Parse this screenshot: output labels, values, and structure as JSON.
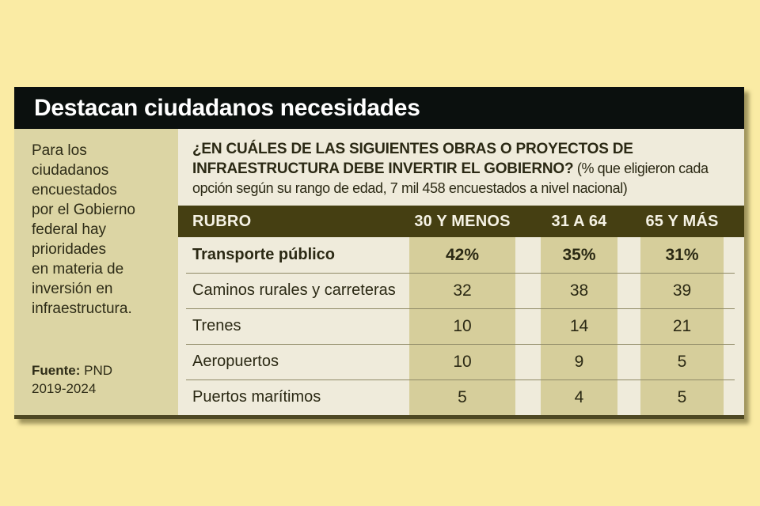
{
  "header": {
    "title": "Destacan ciudadanos necesidades"
  },
  "sidebar": {
    "intro_lines": [
      "Para los",
      "ciudadanos",
      "encuestados",
      "por el Gobierno",
      "federal hay",
      "prioridades",
      "en materia de",
      "inversión en",
      "infraestructura."
    ],
    "source_label": "Fuente:",
    "source_value": "PND",
    "source_line2": "2019-2024"
  },
  "question": {
    "line1": "¿EN CUÁLES DE LAS SIGUIENTES OBRAS O PROYECTOS DE",
    "line2": "INFRAESTRUCTURA DEBE INVERTIR EL GOBIERNO?",
    "note": "(% que eligieron cada opción según su rango de edad, 7 mil 458 encuestados a nivel nacional)"
  },
  "chart_data": {
    "type": "table",
    "title": "¿En cuáles de las siguientes obras o proyectos de infraestructura debe invertir el Gobierno?",
    "subtitle": "% que eligieron cada opción según su rango de edad, 7 mil 458 encuestados a nivel nacional",
    "columns": [
      "RUBRO",
      "30 Y MENOS",
      "31 A 64",
      "65 Y MÁS"
    ],
    "rows": [
      {
        "label": "Transporte público",
        "values": [
          "42%",
          "35%",
          "31%"
        ],
        "emphasis": true
      },
      {
        "label": "Caminos rurales y carreteras",
        "values": [
          "32",
          "38",
          "39"
        ],
        "emphasis": false
      },
      {
        "label": "Trenes",
        "values": [
          "10",
          "14",
          "21"
        ],
        "emphasis": false
      },
      {
        "label": "Aeropuertos",
        "values": [
          "10",
          "9",
          "5"
        ],
        "emphasis": false
      },
      {
        "label": "Puertos marítimos",
        "values": [
          "5",
          "4",
          "5"
        ],
        "emphasis": false
      }
    ]
  },
  "colors": {
    "page_background": "#FAEBA4",
    "title_bar": "#0B100E",
    "sidebar_background": "#DCD5A4",
    "panel_background": "#EFEBDB",
    "table_header": "#453F12",
    "column_band": "#D6CE9B",
    "text_dark_olive": "#2B2914"
  }
}
